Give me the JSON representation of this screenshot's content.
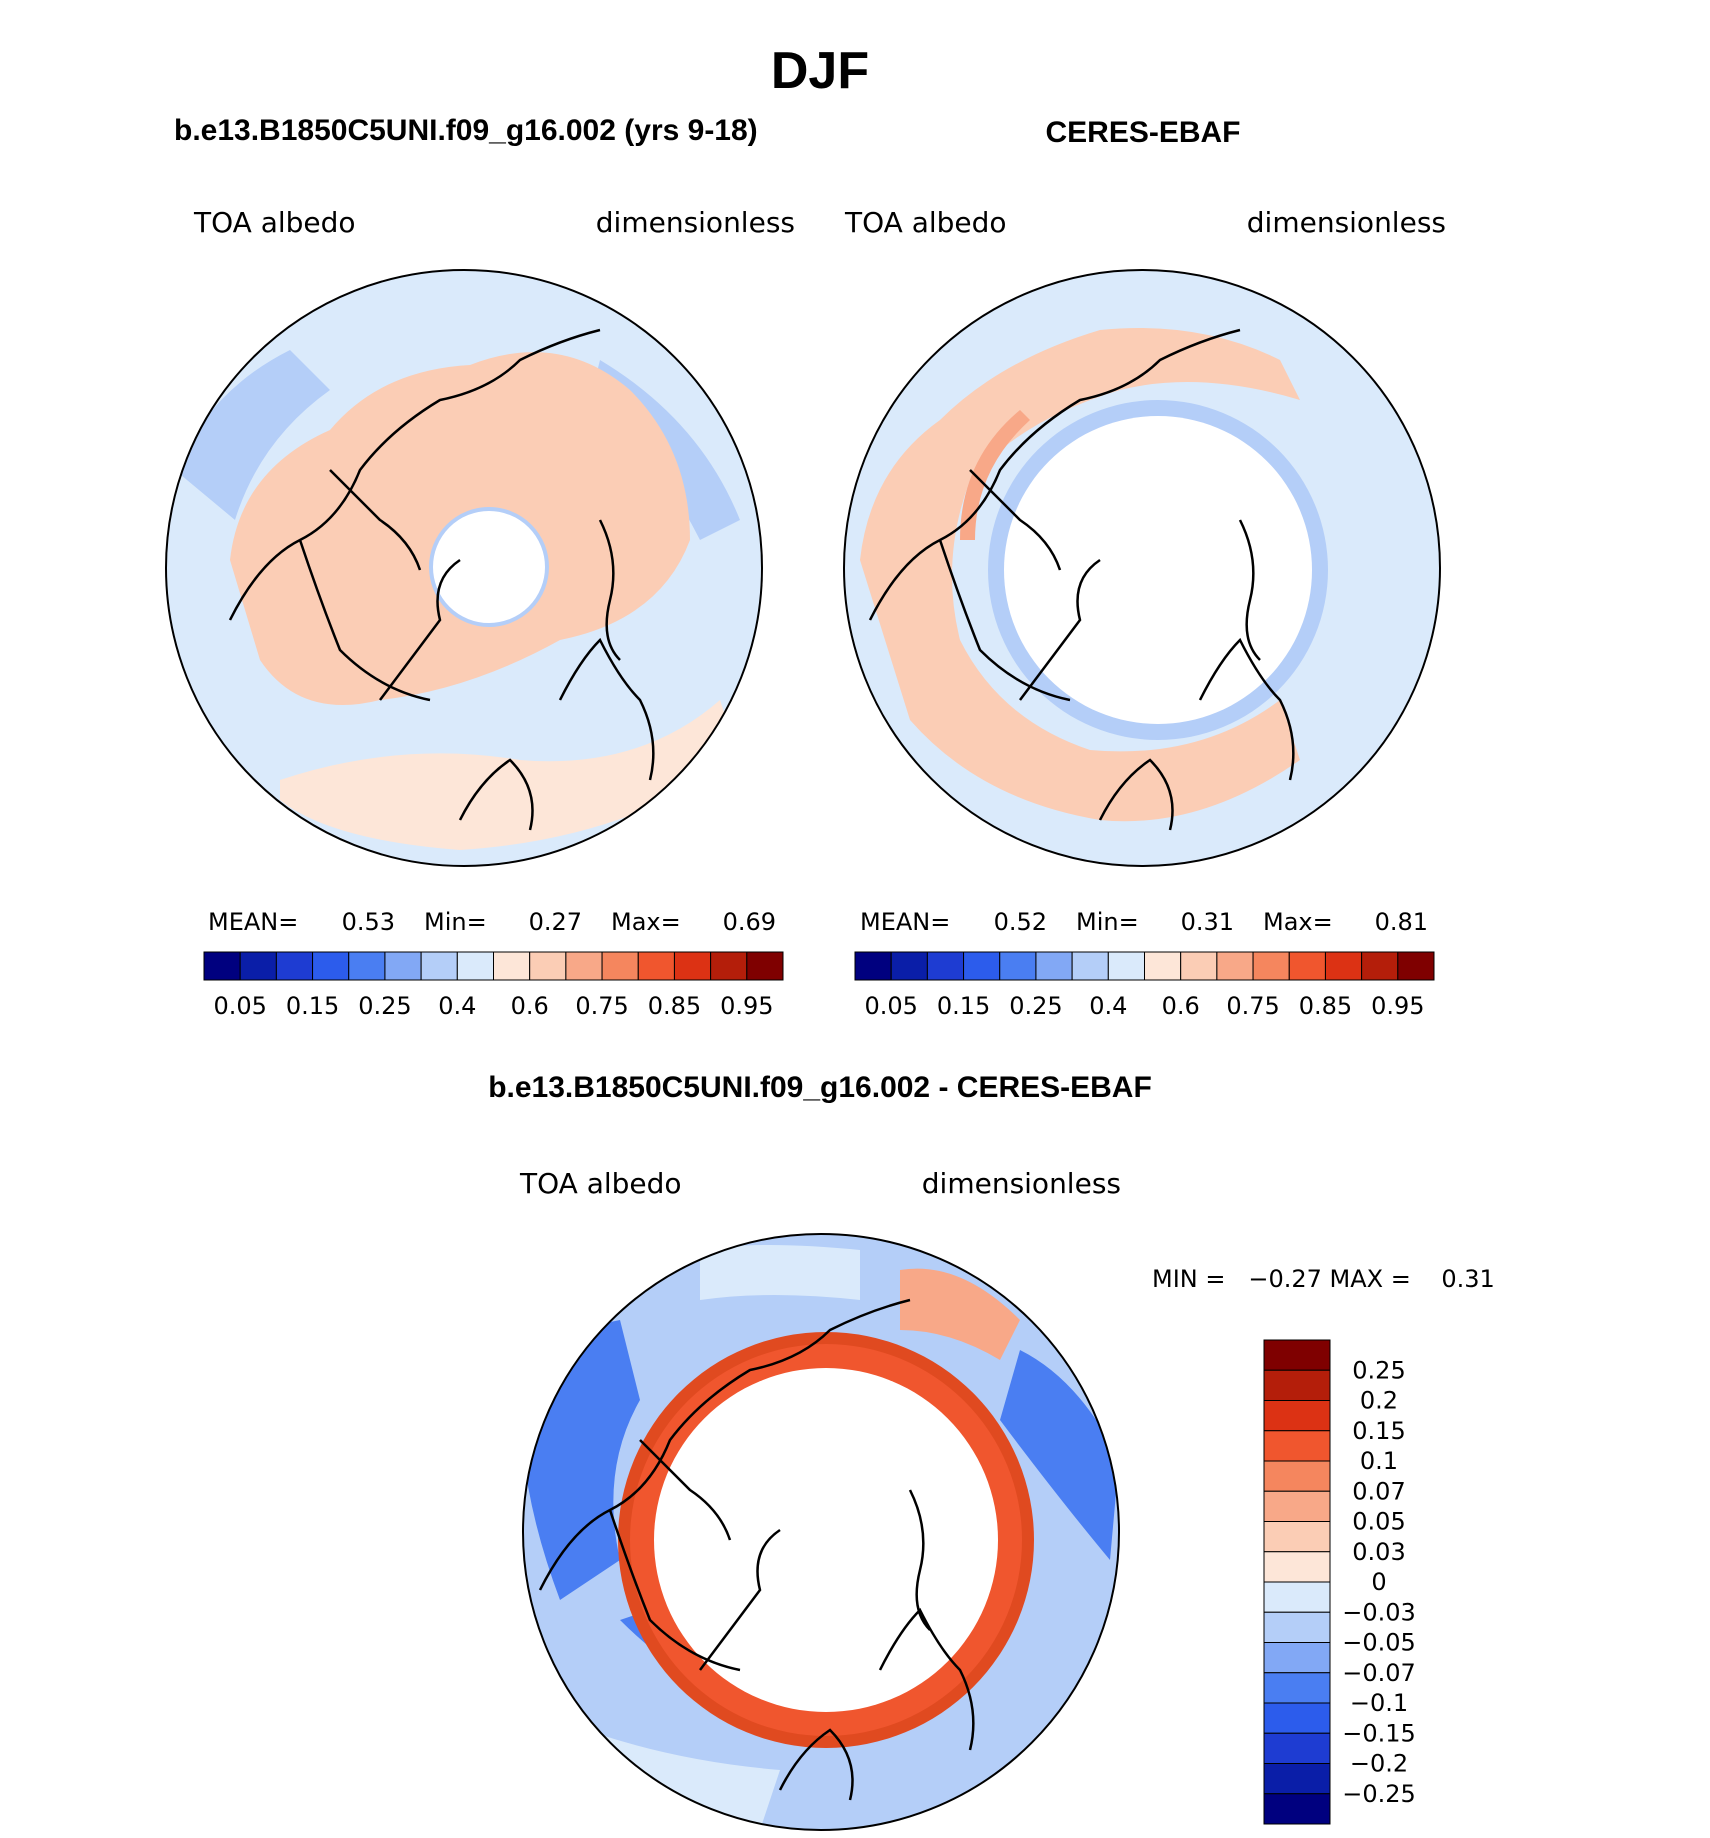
{
  "figure": {
    "title": "DJF"
  },
  "panels": [
    {
      "id": "model",
      "header": "b.e13.B1850C5UNI.f09_g16.002 (yrs 9-18)",
      "variable": "TOA albedo",
      "units": "dimensionless",
      "stats": {
        "mean_label": "MEAN=",
        "mean": "0.53",
        "min_label": "Min=",
        "min": "0.27",
        "max_label": "Max=",
        "max": "0.69"
      },
      "pole_hole_fraction": 0.2
    },
    {
      "id": "obs",
      "header": "CERES-EBAF",
      "variable": "TOA albedo",
      "units": "dimensionless",
      "stats": {
        "mean_label": "MEAN=",
        "mean": "0.52",
        "min_label": "Min=",
        "min": "0.31",
        "max_label": "Max=",
        "max": "0.81"
      },
      "pole_hole_fraction": 0.52
    },
    {
      "id": "diff",
      "header": "b.e13.B1850C5UNI.f09_g16.002 - CERES-EBAF",
      "variable": "TOA albedo",
      "units": "dimensionless",
      "minmax": "MIN =   −0.27 MAX =    0.31",
      "pole_hole_fraction": 0.52
    }
  ],
  "colorbars": {
    "abs_ticks": [
      "0.05",
      "0.15",
      "0.25",
      "0.4",
      "0.6",
      "0.75",
      "0.85",
      "0.95"
    ],
    "abs_colors": [
      "#00007f",
      "#0a1ea8",
      "#1e3cd2",
      "#2c5cec",
      "#4a7ef2",
      "#82a8f5",
      "#b4cef8",
      "#daeafb",
      "#fde6d8",
      "#fbcdb5",
      "#f8a888",
      "#f5865e",
      "#f0562e",
      "#dc3214",
      "#b41e0a",
      "#7f0000"
    ],
    "diff_ticks": [
      "0.25",
      "0.2",
      "0.15",
      "0.1",
      "0.07",
      "0.05",
      "0.03",
      "0",
      "−0.03",
      "−0.05",
      "−0.07",
      "−0.1",
      "−0.15",
      "−0.2",
      "−0.25"
    ],
    "diff_colors": [
      "#7f0000",
      "#b41e0a",
      "#dc3214",
      "#f0562e",
      "#f5865e",
      "#f8a888",
      "#fbcdb5",
      "#fde6d8",
      "#daeafb",
      "#b4cef8",
      "#82a8f5",
      "#4a7ef2",
      "#2c5cec",
      "#1e3cd2",
      "#0a1ea8",
      "#00007f"
    ]
  }
}
